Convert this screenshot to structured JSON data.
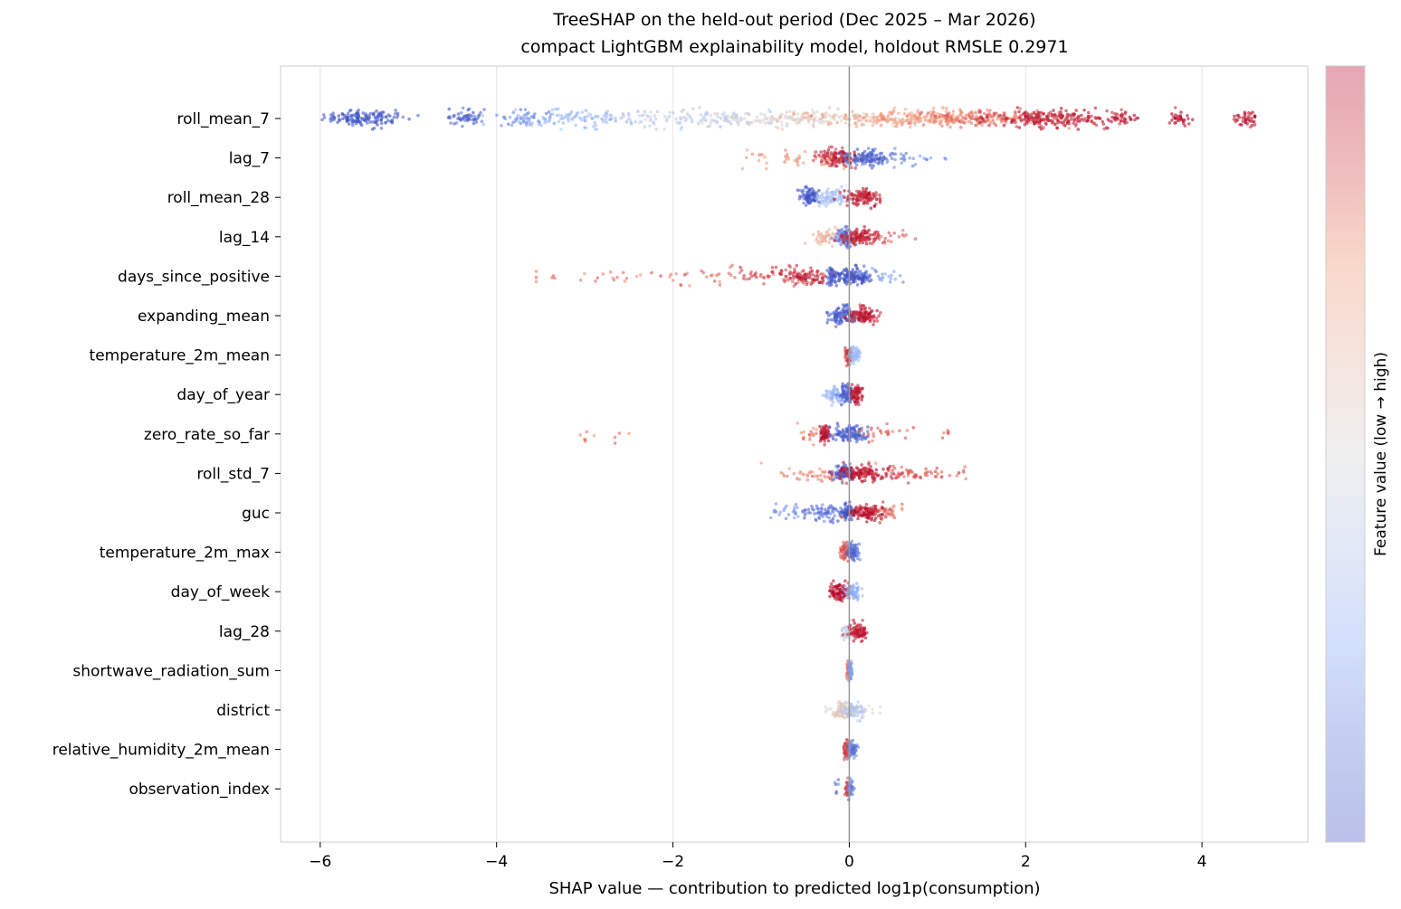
{
  "chart_data": {
    "type": "scatter",
    "subtype": "beeswarm",
    "title": "TreeSHAP on the held-out period (Dec 2025 – Mar 2026)",
    "subtitle": "compact LightGBM explainability model, holdout RMSLE 0.2971",
    "xlabel": "SHAP value — contribution to predicted log1p(consumption)",
    "xlim": [
      -6.45,
      5.2
    ],
    "xticks": [
      -6,
      -4,
      -2,
      0,
      2,
      4
    ],
    "xtick_labels": [
      "−6",
      "−4",
      "−2",
      "0",
      "2",
      "4"
    ],
    "grid": "vertical",
    "zero_line": true,
    "colorbar": {
      "label": "Feature value (low → high)",
      "colormap": "coolwarm",
      "low_color": "#3b4cc0",
      "mid_color": "#dddddd",
      "high_color": "#b40426"
    },
    "features": [
      {
        "name": "roll_mean_7",
        "min": -6.0,
        "max": 4.6,
        "core_min": -5.8,
        "core_max": 2.85,
        "clusters": [
          {
            "x": -5.5,
            "spread": 0.22,
            "count": 140,
            "color": 0.02
          },
          {
            "x": -4.35,
            "spread": 0.12,
            "count": 50,
            "color": 0.05
          },
          {
            "x": -3.7,
            "spread": 0.12,
            "count": 40,
            "color": 0.15
          },
          {
            "x": -3.0,
            "spread": 0.4,
            "count": 110,
            "color": 0.3
          },
          {
            "x": -1.7,
            "spread": 0.5,
            "count": 130,
            "color": 0.42
          },
          {
            "x": -0.5,
            "spread": 0.4,
            "count": 140,
            "color": 0.55
          },
          {
            "x": 0.6,
            "spread": 0.5,
            "count": 200,
            "color": 0.72
          },
          {
            "x": 1.5,
            "spread": 0.4,
            "count": 180,
            "color": 0.82
          },
          {
            "x": 2.3,
            "spread": 0.35,
            "count": 200,
            "color": 0.95
          },
          {
            "x": 3.1,
            "spread": 0.06,
            "count": 35,
            "color": 0.97
          },
          {
            "x": 3.75,
            "spread": 0.06,
            "count": 30,
            "color": 0.98
          },
          {
            "x": 4.5,
            "spread": 0.08,
            "count": 40,
            "color": 0.98
          }
        ]
      },
      {
        "name": "lag_7",
        "min": -1.5,
        "max": 1.4,
        "core_min": -0.35,
        "core_max": 0.35,
        "clusters": [
          {
            "x": -0.15,
            "spread": 0.12,
            "count": 120,
            "color": 0.95
          },
          {
            "x": 0.2,
            "spread": 0.12,
            "count": 110,
            "color": 0.05
          },
          {
            "x": -0.6,
            "spread": 0.3,
            "count": 40,
            "color": 0.75
          },
          {
            "x": 0.6,
            "spread": 0.25,
            "count": 35,
            "color": 0.15
          }
        ]
      },
      {
        "name": "roll_mean_28",
        "min": -0.6,
        "max": 0.35,
        "core_min": -0.55,
        "core_max": 0.3,
        "clusters": [
          {
            "x": -0.45,
            "spread": 0.06,
            "count": 90,
            "color": 0.03
          },
          {
            "x": -0.2,
            "spread": 0.1,
            "count": 90,
            "color": 0.35
          },
          {
            "x": 0.15,
            "spread": 0.1,
            "count": 110,
            "color": 0.95
          }
        ]
      },
      {
        "name": "lag_14",
        "min": -0.5,
        "max": 0.75,
        "core_min": -0.2,
        "core_max": 0.25,
        "clusters": [
          {
            "x": -0.25,
            "spread": 0.12,
            "count": 60,
            "color": 0.65
          },
          {
            "x": -0.05,
            "spread": 0.06,
            "count": 90,
            "color": 0.08
          },
          {
            "x": 0.12,
            "spread": 0.1,
            "count": 120,
            "color": 0.95
          },
          {
            "x": 0.45,
            "spread": 0.15,
            "count": 25,
            "color": 0.85
          }
        ]
      },
      {
        "name": "days_since_positive",
        "min": -3.55,
        "max": 0.8,
        "core_min": -0.5,
        "core_max": 0.2,
        "clusters": [
          {
            "x": -2.4,
            "spread": 0.6,
            "count": 35,
            "color": 0.8
          },
          {
            "x": -1.0,
            "spread": 0.4,
            "count": 60,
            "color": 0.88
          },
          {
            "x": -0.5,
            "spread": 0.15,
            "count": 80,
            "color": 0.95
          },
          {
            "x": -0.2,
            "spread": 0.03,
            "count": 40,
            "color": 0.05
          },
          {
            "x": 0.05,
            "spread": 0.1,
            "count": 130,
            "color": 0.02
          },
          {
            "x": 0.4,
            "spread": 0.15,
            "count": 20,
            "color": 0.2
          }
        ]
      },
      {
        "name": "expanding_mean",
        "min": -0.25,
        "max": 0.38,
        "core_min": -0.2,
        "core_max": 0.3,
        "clusters": [
          {
            "x": -0.08,
            "spread": 0.08,
            "count": 110,
            "color": 0.05
          },
          {
            "x": 0.15,
            "spread": 0.08,
            "count": 110,
            "color": 0.95
          }
        ]
      },
      {
        "name": "temperature_2m_mean",
        "min": -0.05,
        "max": 0.12,
        "core_min": -0.05,
        "core_max": 0.1,
        "clusters": [
          {
            "x": 0.0,
            "spread": 0.02,
            "count": 80,
            "color": 0.9
          },
          {
            "x": 0.06,
            "spread": 0.03,
            "count": 60,
            "color": 0.3
          }
        ]
      },
      {
        "name": "day_of_year",
        "min": -0.3,
        "max": 0.15,
        "core_min": -0.25,
        "core_max": 0.12,
        "clusters": [
          {
            "x": -0.15,
            "spread": 0.07,
            "count": 70,
            "color": 0.3
          },
          {
            "x": -0.02,
            "spread": 0.04,
            "count": 80,
            "color": 0.05
          },
          {
            "x": 0.08,
            "spread": 0.03,
            "count": 70,
            "color": 0.95
          }
        ]
      },
      {
        "name": "zero_rate_so_far",
        "min": -3.05,
        "max": 1.15,
        "core_min": -0.35,
        "core_max": 0.25,
        "clusters": [
          {
            "x": -2.8,
            "spread": 0.15,
            "count": 10,
            "color": 0.8
          },
          {
            "x": -0.45,
            "spread": 0.08,
            "count": 20,
            "color": 0.8
          },
          {
            "x": -0.28,
            "spread": 0.03,
            "count": 60,
            "color": 0.98
          },
          {
            "x": 0.0,
            "spread": 0.1,
            "count": 120,
            "color": 0.05
          },
          {
            "x": 0.35,
            "spread": 0.2,
            "count": 25,
            "color": 0.85
          },
          {
            "x": 1.1,
            "spread": 0.05,
            "count": 6,
            "color": 0.85
          }
        ]
      },
      {
        "name": "roll_std_7",
        "min": -1.1,
        "max": 1.4,
        "core_min": -0.3,
        "core_max": 0.6,
        "clusters": [
          {
            "x": -0.4,
            "spread": 0.3,
            "count": 50,
            "color": 0.8
          },
          {
            "x": -0.05,
            "spread": 0.06,
            "count": 90,
            "color": 0.05
          },
          {
            "x": 0.2,
            "spread": 0.15,
            "count": 130,
            "color": 0.97
          },
          {
            "x": 0.7,
            "spread": 0.25,
            "count": 50,
            "color": 0.85
          },
          {
            "x": 1.3,
            "spread": 0.05,
            "count": 6,
            "color": 0.85
          }
        ]
      },
      {
        "name": "guc",
        "min": -1.05,
        "max": 0.6,
        "core_min": -0.1,
        "core_max": 0.5,
        "clusters": [
          {
            "x": -0.75,
            "spread": 0.2,
            "count": 20,
            "color": 0.2
          },
          {
            "x": -0.3,
            "spread": 0.15,
            "count": 70,
            "color": 0.1
          },
          {
            "x": -0.03,
            "spread": 0.04,
            "count": 60,
            "color": 0.03
          },
          {
            "x": 0.2,
            "spread": 0.12,
            "count": 120,
            "color": 0.97
          },
          {
            "x": 0.45,
            "spread": 0.08,
            "count": 30,
            "color": 0.8
          }
        ]
      },
      {
        "name": "temperature_2m_max",
        "min": -0.12,
        "max": 0.12,
        "core_min": -0.1,
        "core_max": 0.1,
        "clusters": [
          {
            "x": -0.04,
            "spread": 0.03,
            "count": 70,
            "color": 0.85
          },
          {
            "x": 0.04,
            "spread": 0.03,
            "count": 70,
            "color": 0.08
          }
        ]
      },
      {
        "name": "day_of_week",
        "min": -0.22,
        "max": 0.15,
        "core_min": -0.2,
        "core_max": 0.1,
        "clusters": [
          {
            "x": -0.1,
            "spread": 0.06,
            "count": 110,
            "color": 0.97
          },
          {
            "x": 0.04,
            "spread": 0.04,
            "count": 60,
            "color": 0.25
          }
        ]
      },
      {
        "name": "lag_28",
        "min": -0.1,
        "max": 0.2,
        "core_min": -0.05,
        "core_max": 0.18,
        "clusters": [
          {
            "x": -0.03,
            "spread": 0.03,
            "count": 50,
            "color": 0.45
          },
          {
            "x": 0.1,
            "spread": 0.05,
            "count": 90,
            "color": 0.96
          }
        ]
      },
      {
        "name": "shortwave_radiation_sum",
        "min": -0.04,
        "max": 0.04,
        "core_min": -0.04,
        "core_max": 0.04,
        "clusters": [
          {
            "x": -0.01,
            "spread": 0.012,
            "count": 50,
            "color": 0.8
          },
          {
            "x": 0.01,
            "spread": 0.012,
            "count": 50,
            "color": 0.2
          }
        ]
      },
      {
        "name": "district",
        "min": -0.3,
        "max": 0.35,
        "core_min": -0.15,
        "core_max": 0.2,
        "clusters": [
          {
            "x": -0.08,
            "spread": 0.06,
            "count": 60,
            "color": 0.6
          },
          {
            "x": 0.05,
            "spread": 0.07,
            "count": 70,
            "color": 0.35
          },
          {
            "x": 0.0,
            "spread": 0.15,
            "count": 30,
            "color": 0.5
          }
        ]
      },
      {
        "name": "relative_humidity_2m_mean",
        "min": -0.06,
        "max": 0.1,
        "core_min": -0.06,
        "core_max": 0.08,
        "clusters": [
          {
            "x": -0.03,
            "spread": 0.02,
            "count": 60,
            "color": 0.88
          },
          {
            "x": 0.04,
            "spread": 0.025,
            "count": 60,
            "color": 0.12
          }
        ]
      },
      {
        "name": "observation_index",
        "min": -0.18,
        "max": 0.06,
        "core_min": -0.05,
        "core_max": 0.05,
        "clusters": [
          {
            "x": -0.01,
            "spread": 0.015,
            "count": 60,
            "color": 0.9
          },
          {
            "x": 0.02,
            "spread": 0.015,
            "count": 40,
            "color": 0.15
          },
          {
            "x": -0.15,
            "spread": 0.02,
            "count": 6,
            "color": 0.1
          }
        ]
      }
    ]
  }
}
